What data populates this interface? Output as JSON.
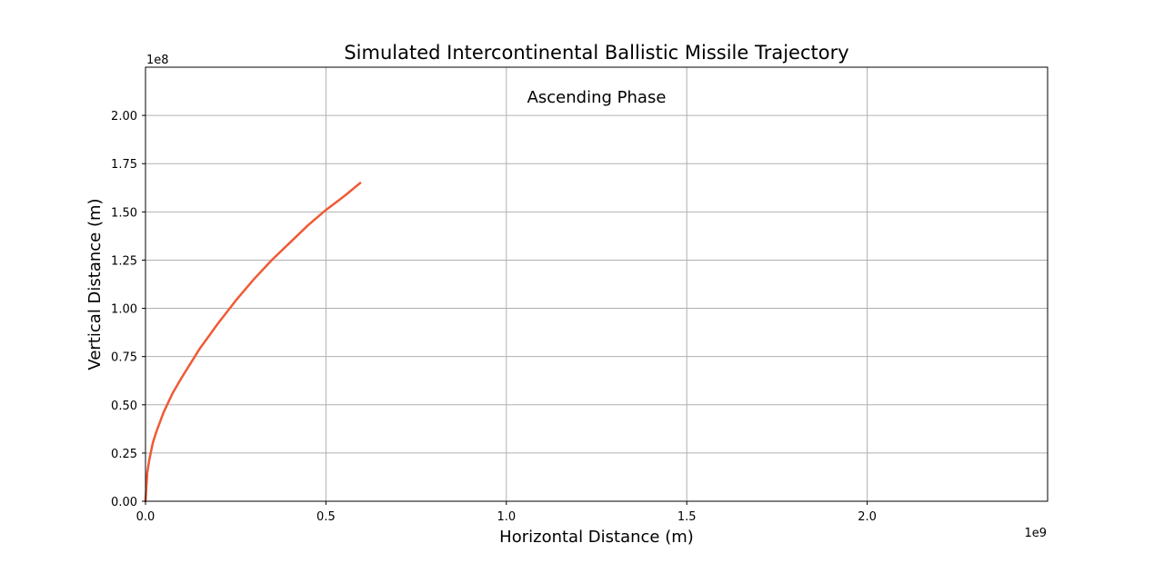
{
  "chart_data": {
    "type": "line",
    "title": "Simulated Intercontinental Ballistic Missile Trajectory",
    "xlabel": "Horizontal Distance (m)",
    "ylabel": "Vertical Distance (m)",
    "annotation": "Ascending Phase",
    "x_offset_text": "1e9",
    "y_offset_text": "1e8",
    "xlim": [
      0,
      2500000000
    ],
    "ylim": [
      0,
      225000000
    ],
    "x_ticks": [
      0,
      500000000,
      1000000000,
      1500000000,
      2000000000
    ],
    "x_tick_labels": [
      "0.0",
      "0.5",
      "1.0",
      "1.5",
      "2.0"
    ],
    "y_ticks": [
      0,
      25000000,
      50000000,
      75000000,
      100000000,
      125000000,
      150000000,
      175000000,
      200000000
    ],
    "y_tick_labels": [
      "0.00",
      "0.25",
      "0.50",
      "0.75",
      "1.00",
      "1.25",
      "1.50",
      "1.75",
      "2.00"
    ],
    "grid": true,
    "series": [
      {
        "color": "#f05a35",
        "x": [
          0,
          5000000,
          10000000,
          20000000,
          30000000,
          50000000,
          75000000,
          100000000,
          150000000,
          200000000,
          250000000,
          300000000,
          350000000,
          400000000,
          450000000,
          500000000,
          550000000,
          595000000
        ],
        "y": [
          0,
          15000000,
          21000000,
          30000000,
          36000000,
          46000000,
          56000000,
          64000000,
          79000000,
          92000000,
          104000000,
          115000000,
          125000000,
          134000000,
          143000000,
          151000000,
          158000000,
          165000000
        ]
      }
    ]
  }
}
